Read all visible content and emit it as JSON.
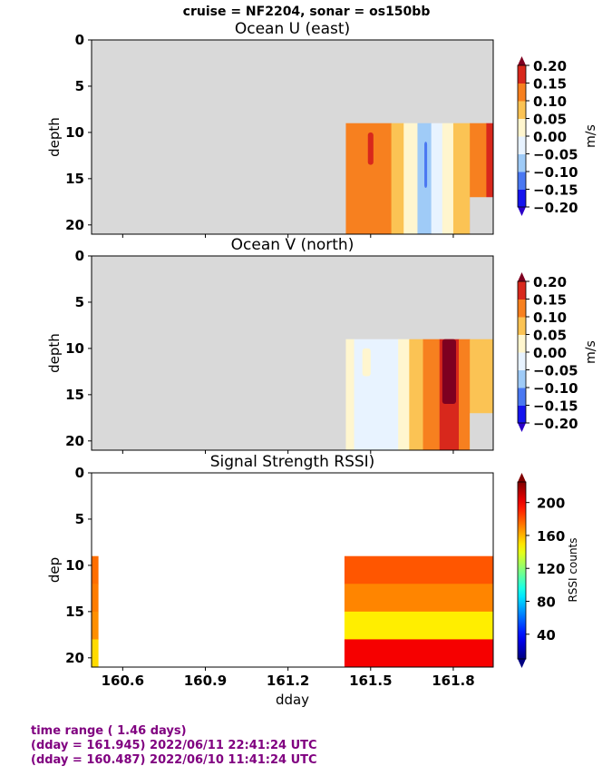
{
  "figure_title": "cruise = NF2204,  sonar = os150bb",
  "footer": {
    "line1": "time range ( 1.46 days)",
    "line2": "(dday = 161.945) 2022/06/11 22:41:24 UTC",
    "line3": "(dday = 160.487) 2022/06/10 11:41:24 UTC"
  },
  "chart_data": [
    {
      "type": "heatmap",
      "title": "Ocean U (east)",
      "xlabel": "",
      "ylabel": "depth",
      "xlim": [
        160.487,
        161.945
      ],
      "ylim": [
        21,
        0
      ],
      "yticks": [
        0,
        5,
        10,
        15,
        20
      ],
      "xticks": [
        160.6,
        160.9,
        161.2,
        161.5,
        161.8
      ],
      "xticklabels_shown": false,
      "nodata_color": "#d9d9d9",
      "colorbar": {
        "label": "m/s",
        "levels": [
          -0.2,
          -0.15,
          -0.1,
          -0.05,
          0.0,
          0.05,
          0.1,
          0.15,
          0.2
        ],
        "ticklabels": [
          "0.20",
          "0.15",
          "0.10",
          "0.05",
          "0.00",
          "−0.05",
          "−0.10",
          "−0.15",
          "−0.20"
        ],
        "colors": [
          "#1414ee",
          "#4a78f2",
          "#9fcbf7",
          "#e8f3ff",
          "#fff6cf",
          "#fbc354",
          "#f7801f",
          "#d8281c"
        ],
        "extend_colors": {
          "under": "#2b00c8",
          "over": "#7e0020"
        }
      },
      "data_region": {
        "x_start": 161.41,
        "x_end": 161.945,
        "depth_top": 9,
        "depth_bottom": 21
      },
      "columns": [
        {
          "x0": 161.41,
          "x1": 161.575,
          "value": 0.12
        },
        {
          "x0": 161.575,
          "x1": 161.62,
          "value": 0.07
        },
        {
          "x0": 161.62,
          "x1": 161.67,
          "value": 0.02
        },
        {
          "x0": 161.67,
          "x1": 161.72,
          "value": -0.07
        },
        {
          "x0": 161.72,
          "x1": 161.76,
          "value": -0.04
        },
        {
          "x0": 161.76,
          "x1": 161.8,
          "value": 0.02
        },
        {
          "x0": 161.8,
          "x1": 161.86,
          "value": 0.07
        },
        {
          "x0": 161.86,
          "x1": 161.92,
          "value": 0.12
        },
        {
          "x0": 161.92,
          "x1": 161.945,
          "value": 0.17
        }
      ],
      "features": [
        {
          "x0": 161.49,
          "x1": 161.51,
          "d0": 10,
          "d1": 13.5,
          "value": 0.17
        },
        {
          "x0": 161.695,
          "x1": 161.705,
          "d0": 11,
          "d1": 16,
          "value": -0.12
        }
      ],
      "nodata_patches": [
        {
          "x0": 161.86,
          "x1": 161.945,
          "d0": 17,
          "d1": 21
        }
      ]
    },
    {
      "type": "heatmap",
      "title": "Ocean V (north)",
      "xlabel": "",
      "ylabel": "depth",
      "xlim": [
        160.487,
        161.945
      ],
      "ylim": [
        21,
        0
      ],
      "yticks": [
        0,
        5,
        10,
        15,
        20
      ],
      "xticks": [
        160.6,
        160.9,
        161.2,
        161.5,
        161.8
      ],
      "xticklabels_shown": false,
      "nodata_color": "#d9d9d9",
      "colorbar": {
        "label": "m/s",
        "levels": [
          -0.2,
          -0.15,
          -0.1,
          -0.05,
          0.0,
          0.05,
          0.1,
          0.15,
          0.2
        ],
        "ticklabels": [
          "0.20",
          "0.15",
          "0.10",
          "0.05",
          "0.00",
          "−0.05",
          "−0.10",
          "−0.15",
          "−0.20"
        ],
        "colors": [
          "#1414ee",
          "#4a78f2",
          "#9fcbf7",
          "#e8f3ff",
          "#fff6cf",
          "#fbc354",
          "#f7801f",
          "#d8281c"
        ],
        "extend_colors": {
          "under": "#2b00c8",
          "over": "#7e0020"
        }
      },
      "data_region": {
        "x_start": 161.41,
        "x_end": 161.945,
        "depth_top": 9,
        "depth_bottom": 21
      },
      "columns": [
        {
          "x0": 161.41,
          "x1": 161.44,
          "value": 0.02
        },
        {
          "x0": 161.44,
          "x1": 161.6,
          "value": -0.03
        },
        {
          "x0": 161.6,
          "x1": 161.64,
          "value": 0.03
        },
        {
          "x0": 161.64,
          "x1": 161.69,
          "value": 0.08
        },
        {
          "x0": 161.69,
          "x1": 161.75,
          "value": 0.12
        },
        {
          "x0": 161.75,
          "x1": 161.82,
          "value": 0.17
        },
        {
          "x0": 161.82,
          "x1": 161.86,
          "value": 0.12
        },
        {
          "x0": 161.86,
          "x1": 161.945,
          "value": 0.07
        }
      ],
      "features": [
        {
          "x0": 161.76,
          "x1": 161.81,
          "d0": 9,
          "d1": 16,
          "value": 0.22
        },
        {
          "x0": 161.47,
          "x1": 161.5,
          "d0": 10,
          "d1": 13,
          "value": 0.02
        }
      ],
      "nodata_patches": [
        {
          "x0": 161.86,
          "x1": 161.945,
          "d0": 17,
          "d1": 21
        }
      ]
    },
    {
      "type": "heatmap",
      "title": "Signal Strength RSSI)",
      "xlabel": "dday",
      "ylabel": "dep",
      "xlim": [
        160.487,
        161.945
      ],
      "ylim": [
        21,
        0
      ],
      "yticks": [
        0,
        5,
        10,
        15,
        20
      ],
      "xticks": [
        160.6,
        160.9,
        161.2,
        161.5,
        161.8
      ],
      "xticklabels": [
        "160.6",
        "160.9",
        "161.2",
        "161.5",
        "161.8"
      ],
      "nodata_color": "#ffffff",
      "colorbar": {
        "label": "RSSI counts",
        "vmin": 10,
        "vmax": 225,
        "ticks": [
          40,
          80,
          120,
          160,
          200
        ],
        "ticklabels": [
          "40",
          "80",
          "120",
          "160",
          "200"
        ],
        "colormap": "jet"
      },
      "data_region": {
        "x_start": 161.405,
        "x_end": 161.945,
        "depth_top": 9,
        "depth_bottom": 21
      },
      "edge_strip": {
        "x0": 160.487,
        "x1": 160.512,
        "d0": 9,
        "d1": 21,
        "rows": [
          175,
          172,
          168,
          152
        ]
      },
      "depth_bands": [
        {
          "d0": 9,
          "d1": 12,
          "value": 180
        },
        {
          "d0": 12,
          "d1": 15,
          "value": 170
        },
        {
          "d0": 15,
          "d1": 18,
          "value": 148
        },
        {
          "d0": 18,
          "d1": 21,
          "value": 200
        }
      ]
    }
  ]
}
